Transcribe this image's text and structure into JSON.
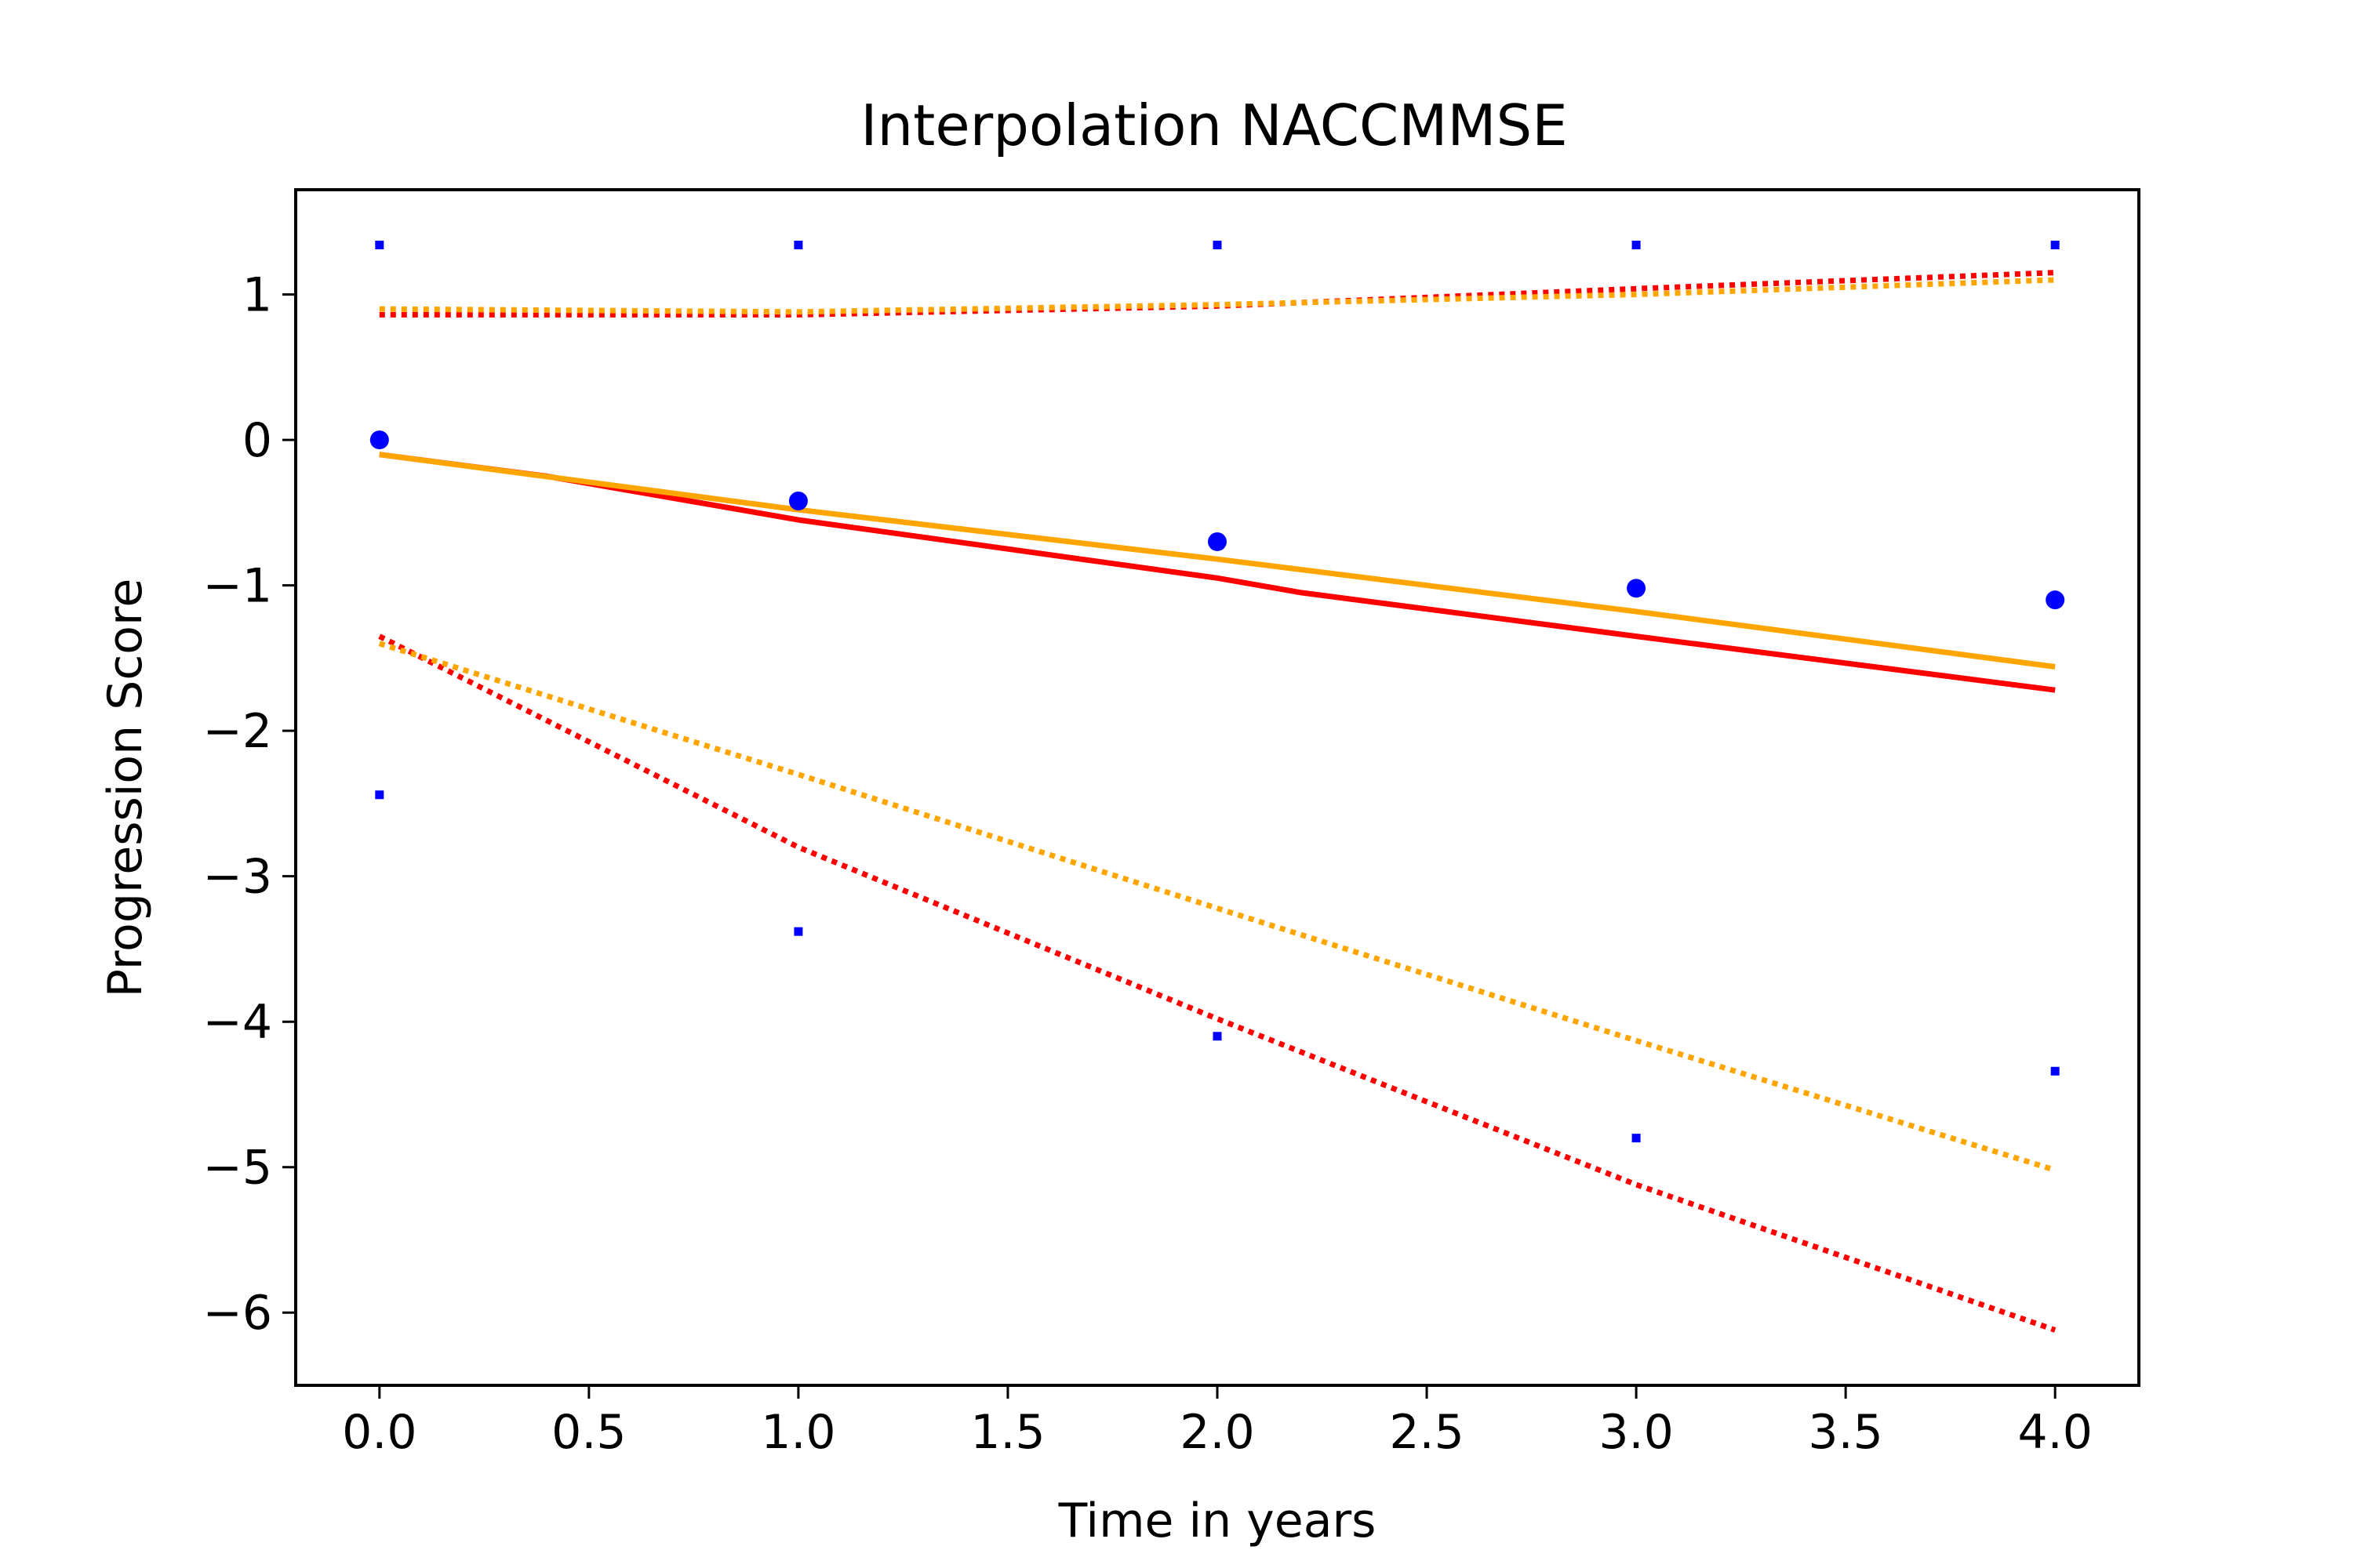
{
  "chart_data": {
    "type": "line",
    "title": "Interpolation NACCMMSE",
    "xlabel": "Time in years",
    "ylabel": "Progression Score",
    "xlim": [
      -0.2,
      4.2
    ],
    "ylim": [
      -6.5,
      1.72
    ],
    "x_ticks": [
      0.0,
      0.5,
      1.0,
      1.5,
      2.0,
      2.5,
      3.0,
      3.5,
      4.0
    ],
    "x_tick_labels": [
      "0.0",
      "0.5",
      "1.0",
      "1.5",
      "2.0",
      "2.5",
      "3.0",
      "3.5",
      "4.0"
    ],
    "y_ticks": [
      1,
      0,
      -1,
      -2,
      -3,
      -4,
      -5,
      -6
    ],
    "y_tick_labels": [
      "1",
      "0",
      "−1",
      "−2",
      "−3",
      "−4",
      "−5",
      "−6"
    ],
    "grid": false,
    "legend": "none",
    "lines": [
      {
        "style": "solid",
        "color": "#ff0000",
        "x": [
          0,
          0.4,
          1,
          2,
          2.2,
          3,
          4
        ],
        "y": [
          -0.1,
          -0.25,
          -0.55,
          -0.95,
          -1.05,
          -1.35,
          -1.72
        ]
      },
      {
        "style": "solid",
        "color": "#ffa500",
        "x": [
          0,
          1,
          2,
          3,
          4
        ],
        "y": [
          -0.1,
          -0.48,
          -0.82,
          -1.18,
          -1.56
        ]
      },
      {
        "style": "dotted",
        "color": "#ff0000",
        "x": [
          0,
          1,
          2,
          3,
          4
        ],
        "y": [
          0.86,
          0.86,
          0.92,
          1.04,
          1.15
        ]
      },
      {
        "style": "dotted",
        "color": "#ffa500",
        "x": [
          0,
          1,
          2,
          3,
          4
        ],
        "y": [
          0.9,
          0.88,
          0.93,
          1.0,
          1.1
        ]
      },
      {
        "style": "dotted",
        "color": "#ff0000",
        "x": [
          0,
          1,
          2,
          3,
          4
        ],
        "y": [
          -1.35,
          -2.8,
          -3.98,
          -5.12,
          -6.12
        ]
      },
      {
        "style": "dotted",
        "color": "#ffa500",
        "x": [
          0,
          1,
          2,
          3,
          4
        ],
        "y": [
          -1.4,
          -2.3,
          -3.22,
          -4.13,
          -5.02
        ]
      }
    ],
    "points": [
      {
        "size": "large",
        "color": "#0000ff",
        "x": [
          0,
          1,
          2,
          3,
          4
        ],
        "y": [
          0.0,
          -0.42,
          -0.7,
          -1.02,
          -1.1
        ]
      },
      {
        "size": "small",
        "color": "#0000ff",
        "x": [
          0,
          1,
          2,
          3,
          4
        ],
        "y": [
          1.34,
          1.34,
          1.34,
          1.34,
          1.34
        ]
      },
      {
        "size": "small",
        "color": "#0000ff",
        "x": [
          0,
          1,
          2,
          3,
          4
        ],
        "y": [
          -2.44,
          -3.38,
          -4.1,
          -4.8,
          -4.34
        ]
      }
    ]
  }
}
